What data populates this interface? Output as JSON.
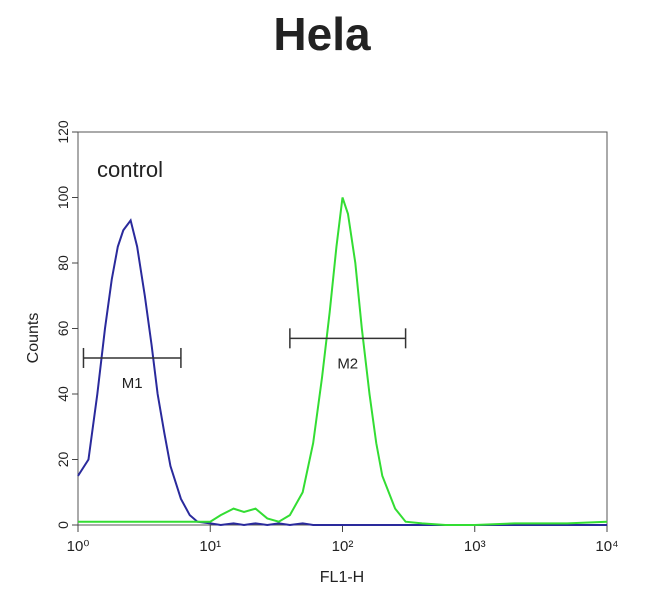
{
  "chart_data": {
    "type": "line",
    "title": "Hela",
    "x_label": "FL1-H",
    "y_label": "Counts",
    "xscale": "log",
    "xlim": [
      1,
      10000
    ],
    "ylim": [
      0,
      120
    ],
    "xticks": [
      {
        "value": 1,
        "label": "10⁰"
      },
      {
        "value": 10,
        "label": "10¹"
      },
      {
        "value": 100,
        "label": "10²"
      },
      {
        "value": 1000,
        "label": "10³"
      },
      {
        "value": 10000,
        "label": "10⁴"
      }
    ],
    "yticks": [
      0,
      20,
      40,
      60,
      80,
      100,
      120
    ],
    "x": [
      1,
      1.2,
      1.4,
      1.6,
      1.8,
      2,
      2.2,
      2.5,
      2.8,
      3.2,
      3.6,
      4,
      4.5,
      5,
      6,
      7,
      8,
      10,
      12,
      15,
      18,
      22,
      27,
      33,
      40,
      50,
      60,
      70,
      80,
      90,
      100,
      110,
      125,
      140,
      160,
      180,
      200,
      250,
      300,
      400,
      600,
      1000,
      2000,
      5000,
      10000
    ],
    "series": [
      {
        "name": "control",
        "color": "#2a2a9c",
        "values": [
          15,
          20,
          40,
          60,
          75,
          85,
          90,
          93,
          85,
          70,
          55,
          40,
          28,
          18,
          8,
          3,
          1,
          0.5,
          0,
          0.5,
          0,
          0.5,
          0,
          0.5,
          0,
          0.5,
          0,
          0,
          0,
          0,
          0,
          0,
          0,
          0,
          0,
          0,
          0,
          0,
          0,
          0,
          0,
          0,
          0,
          0,
          0
        ]
      },
      {
        "color": "#33dd33",
        "values": [
          1,
          1,
          1,
          1,
          1,
          1,
          1,
          1,
          1,
          1,
          1,
          1,
          1,
          1,
          1,
          1,
          1,
          1,
          3,
          5,
          4,
          5,
          2,
          1,
          3,
          10,
          25,
          45,
          65,
          85,
          100,
          95,
          80,
          60,
          40,
          25,
          15,
          5,
          1,
          0.5,
          0,
          0,
          0.5,
          0.5,
          1
        ]
      }
    ],
    "annotation": "control",
    "markers": [
      {
        "label": "M1",
        "range": [
          1.1,
          6
        ],
        "y": 51
      },
      {
        "label": "M2",
        "range": [
          40,
          300
        ],
        "y": 57
      }
    ]
  }
}
